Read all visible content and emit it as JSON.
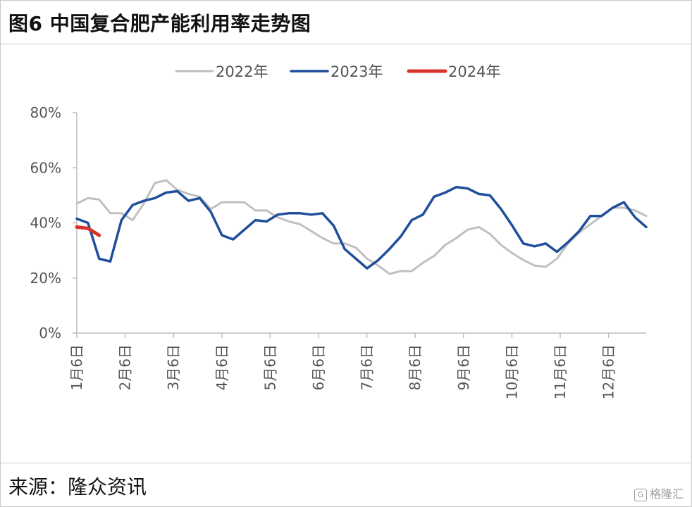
{
  "title": "图6 中国复合肥产能利用率走势图",
  "source": "来源：隆众资讯",
  "watermark": "格隆汇",
  "chart_data": {
    "type": "line",
    "ylim": [
      0,
      80
    ],
    "y_ticks": [
      "0%",
      "20%",
      "40%",
      "60%",
      "80%"
    ],
    "x_ticks": [
      "1月6日",
      "2月6日",
      "3月6日",
      "4月6日",
      "5月6日",
      "6月6日",
      "7月6日",
      "8月6日",
      "9月6日",
      "10月6日",
      "11月6日",
      "12月6日"
    ],
    "x_range": [
      0,
      51
    ],
    "legend_position": "top",
    "grid": false,
    "series": [
      {
        "name": "2022年",
        "color": "#c0c0c0",
        "x": [
          0,
          1,
          2,
          3,
          4,
          5,
          6,
          7,
          8,
          9,
          10,
          11,
          12,
          13,
          14,
          15,
          16,
          17,
          18,
          19,
          20,
          21,
          22,
          23,
          24,
          25,
          26,
          27,
          28,
          29,
          30,
          31,
          32,
          33,
          34,
          35,
          36,
          37,
          38,
          39,
          40,
          41,
          42,
          43,
          44,
          45,
          46,
          47,
          48,
          49,
          50,
          51
        ],
        "values": [
          47,
          49,
          48.5,
          43.5,
          43.5,
          41,
          47,
          54.5,
          55.5,
          52,
          50.5,
          49.5,
          45,
          47.5,
          47.5,
          47.5,
          44.5,
          44.5,
          42,
          40.5,
          39.5,
          37,
          34.5,
          32.5,
          32.5,
          31,
          27,
          24.5,
          21.5,
          22.5,
          22.5,
          25.5,
          28,
          32,
          34.5,
          37.5,
          38.5,
          36,
          32,
          29,
          26.5,
          24.5,
          24,
          27,
          32.5,
          36.5,
          39.5,
          42.5,
          45.5,
          45.5,
          44.5,
          42.5
        ]
      },
      {
        "name": "2023年",
        "color": "#1f4e9b",
        "x": [
          0,
          1,
          2,
          3,
          4,
          5,
          6,
          7,
          8,
          9,
          10,
          11,
          12,
          13,
          14,
          15,
          16,
          17,
          18,
          19,
          20,
          21,
          22,
          23,
          24,
          25,
          26,
          27,
          28,
          29,
          30,
          31,
          32,
          33,
          34,
          35,
          36,
          37,
          38,
          39,
          40,
          41,
          42,
          43,
          44,
          45,
          46,
          47,
          48,
          49,
          50,
          51
        ],
        "values": [
          41.5,
          40,
          27,
          26,
          41,
          46.5,
          48,
          49,
          51,
          51.5,
          48,
          49,
          44,
          35.5,
          34,
          37.5,
          41,
          40.5,
          43,
          43.5,
          43.5,
          43,
          43.5,
          39,
          30.5,
          27,
          23.5,
          26.5,
          30.5,
          35,
          41,
          43,
          49.5,
          51,
          53,
          52.5,
          50.5,
          50,
          45,
          39,
          32.5,
          31.5,
          32.5,
          29.5,
          33,
          37,
          42.5,
          42.5,
          45.5,
          47.5,
          42,
          38.5
        ]
      },
      {
        "name": "2024年",
        "color": "#d9342b",
        "x": [
          0,
          1,
          2
        ],
        "values": [
          38.5,
          38,
          35.5
        ]
      }
    ]
  }
}
